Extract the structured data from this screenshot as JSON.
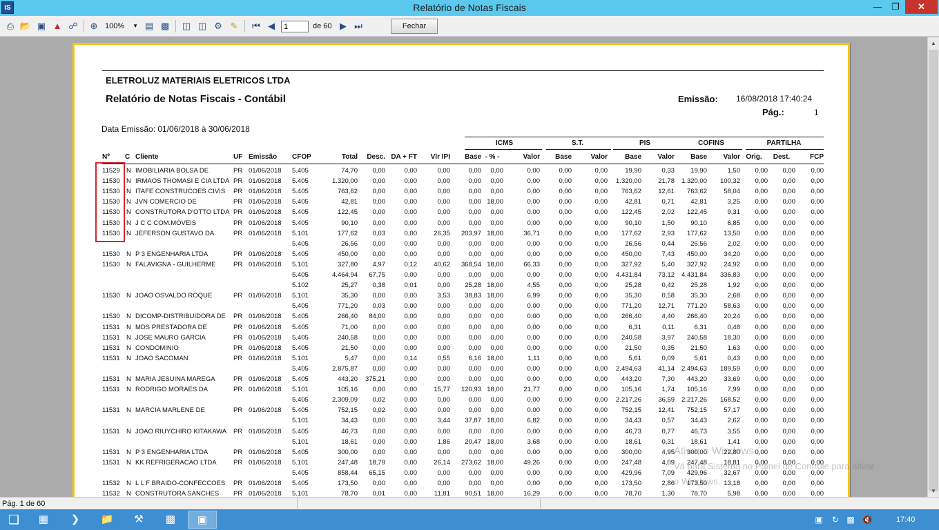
{
  "window": {
    "title": "Relatório de Notas Fiscais",
    "app_icon": "IS"
  },
  "toolbar": {
    "zoom": "100%",
    "page_current": "1",
    "page_of": "de 60",
    "close_label": "Fechar",
    "icons": [
      "print-icon",
      "open-icon",
      "save-icon",
      "pdf-icon",
      "find-icon",
      "zoom-in-icon",
      "page-setup-icon",
      "full-screen-icon",
      "single-page-icon",
      "two-pages-icon",
      "properties-icon",
      "edit-icon",
      "first-page-icon",
      "prev-page-icon",
      "next-page-icon",
      "last-page-icon"
    ]
  },
  "report": {
    "company": "ELETROLUZ MATERIAIS ELETRICOS LTDA",
    "title": "Relatório de Notas Fiscais - Contábil",
    "emissao_label": "Emissão:",
    "emissao_value": "16/08/2018  17:40:24",
    "pag_label": "Pág.:",
    "pag_value": "1",
    "range": "Data Emissão: 01/06/2018 à 30/06/2018",
    "groups": [
      "ICMS",
      "S.T.",
      "PIS",
      "COFINS",
      "PARTILHA"
    ],
    "columns": [
      "Nº",
      "C",
      "Cliente",
      "UF",
      "Emissão",
      "CFOP",
      "Total",
      "Desc.",
      "DA + FT",
      "Vlr IPI",
      "Base",
      "- % -",
      "Valor",
      "Base",
      "Valor",
      "Base",
      "Valor",
      "Base",
      "Valor",
      "Orig.",
      "Dest.",
      "FCP"
    ],
    "rows": [
      [
        "11529",
        "N",
        "IMOBILIARIA BOLSA DE",
        "PR",
        "01/06/2018",
        "5.405",
        "74,70",
        "0,00",
        "0,00",
        "0,00",
        "0,00",
        "0,00",
        "0,00",
        "0,00",
        "0,00",
        "19,90",
        "0,33",
        "19,90",
        "1,50",
        "0,00",
        "0,00",
        "0,00"
      ],
      [
        "11530",
        "N",
        "IRMAOS THOMASI E CIA LTDA",
        "PR",
        "01/06/2018",
        "5.405",
        "1.320,00",
        "0,00",
        "0,00",
        "0,00",
        "0,00",
        "0,00",
        "0,00",
        "0,00",
        "0,00",
        "1.320,00",
        "21,78",
        "1.320,00",
        "100,32",
        "0,00",
        "0,00",
        "0,00"
      ],
      [
        "11530",
        "N",
        "ITAFE CONSTRUCOES CIVIS",
        "PR",
        "01/06/2018",
        "5.405",
        "763,62",
        "0,00",
        "0,00",
        "0,00",
        "0,00",
        "0,00",
        "0,00",
        "0,00",
        "0,00",
        "763,62",
        "12,61",
        "763,62",
        "58,04",
        "0,00",
        "0,00",
        "0,00"
      ],
      [
        "11530",
        "N",
        "JVN COMERCIO DE",
        "PR",
        "01/06/2018",
        "5.405",
        "42,81",
        "0,00",
        "0,00",
        "0,00",
        "0,00",
        "18,00",
        "0,00",
        "0,00",
        "0,00",
        "42,81",
        "0,71",
        "42,81",
        "3,25",
        "0,00",
        "0,00",
        "0,00"
      ],
      [
        "11530",
        "N",
        "CONSTRUTORA D'OTTO LTDA",
        "PR",
        "01/06/2018",
        "5.405",
        "122,45",
        "0,00",
        "0,00",
        "0,00",
        "0,00",
        "0,00",
        "0,00",
        "0,00",
        "0,00",
        "122,45",
        "2,02",
        "122,45",
        "9,31",
        "0,00",
        "0,00",
        "0,00"
      ],
      [
        "11530",
        "N",
        "J C C COM.MOVEIS",
        "PR",
        "01/06/2018",
        "5.405",
        "90,10",
        "0,00",
        "0,00",
        "0,00",
        "0,00",
        "0,00",
        "0,00",
        "0,00",
        "0,00",
        "90,10",
        "1,50",
        "90,10",
        "6,85",
        "0,00",
        "0,00",
        "0,00"
      ],
      [
        "11530",
        "N",
        "JEFERSON GUSTAVO DA",
        "PR",
        "01/06/2018",
        "5.101",
        "177,62",
        "0,03",
        "0,00",
        "26,35",
        "203,97",
        "18,00",
        "36,71",
        "0,00",
        "0,00",
        "177,62",
        "2,93",
        "177,62",
        "13,50",
        "0,00",
        "0,00",
        "0,00"
      ],
      [
        "",
        "",
        "",
        "",
        "",
        "5.405",
        "26,56",
        "0,00",
        "0,00",
        "0,00",
        "0,00",
        "0,00",
        "0,00",
        "0,00",
        "0,00",
        "26,56",
        "0,44",
        "26,56",
        "2,02",
        "0,00",
        "0,00",
        "0,00"
      ],
      [
        "11530",
        "N",
        "P 3 ENGENHARIA LTDA",
        "PR",
        "01/06/2018",
        "5.405",
        "450,00",
        "0,00",
        "0,00",
        "0,00",
        "0,00",
        "0,00",
        "0,00",
        "0,00",
        "0,00",
        "450,00",
        "7,43",
        "450,00",
        "34,20",
        "0,00",
        "0,00",
        "0,00"
      ],
      [
        "11530",
        "N",
        "FALAVIGNA - GUILHERME",
        "PR",
        "01/06/2018",
        "5.101",
        "327,80",
        "4,97",
        "0,12",
        "40,62",
        "368,54",
        "18,00",
        "66,33",
        "0,00",
        "0,00",
        "327,92",
        "5,40",
        "327,92",
        "24,92",
        "0,00",
        "0,00",
        "0,00"
      ],
      [
        "",
        "",
        "",
        "",
        "",
        "5.405",
        "4.464,94",
        "67,75",
        "0,00",
        "0,00",
        "0,00",
        "0,00",
        "0,00",
        "0,00",
        "0,00",
        "4.431,84",
        "73,12",
        "4.431,84",
        "336,83",
        "0,00",
        "0,00",
        "0,00"
      ],
      [
        "",
        "",
        "",
        "",
        "",
        "5.102",
        "25,27",
        "0,38",
        "0,01",
        "0,00",
        "25,28",
        "18,00",
        "4,55",
        "0,00",
        "0,00",
        "25,28",
        "0,42",
        "25,28",
        "1,92",
        "0,00",
        "0,00",
        "0,00"
      ],
      [
        "11530",
        "N",
        "JOAO OSVALDO ROQUE",
        "PR",
        "01/06/2018",
        "5.101",
        "35,30",
        "0,00",
        "0,00",
        "3,53",
        "38,83",
        "18,00",
        "6,99",
        "0,00",
        "0,00",
        "35,30",
        "0,58",
        "35,30",
        "2,68",
        "0,00",
        "0,00",
        "0,00"
      ],
      [
        "",
        "",
        "",
        "",
        "",
        "5.405",
        "771,20",
        "0,03",
        "0,00",
        "0,00",
        "0,00",
        "0,00",
        "0,00",
        "0,00",
        "0,00",
        "771,20",
        "12,71",
        "771,20",
        "58,63",
        "0,00",
        "0,00",
        "0,00"
      ],
      [
        "11530",
        "N",
        "DICOMP-DISTRIBUIDORA DE",
        "PR",
        "01/06/2018",
        "5.405",
        "266,40",
        "84,00",
        "0,00",
        "0,00",
        "0,00",
        "0,00",
        "0,00",
        "0,00",
        "0,00",
        "266,40",
        "4,40",
        "266,40",
        "20,24",
        "0,00",
        "0,00",
        "0,00"
      ],
      [
        "11531",
        "N",
        "MDS PRESTADORA DE",
        "PR",
        "01/06/2018",
        "5.405",
        "71,00",
        "0,00",
        "0,00",
        "0,00",
        "0,00",
        "0,00",
        "0,00",
        "0,00",
        "0,00",
        "6,31",
        "0,11",
        "6,31",
        "0,48",
        "0,00",
        "0,00",
        "0,00"
      ],
      [
        "11531",
        "N",
        "JOSE MAURO GARCIA",
        "PR",
        "01/06/2018",
        "5.405",
        "240,58",
        "0,00",
        "0,00",
        "0,00",
        "0,00",
        "0,00",
        "0,00",
        "0,00",
        "0,00",
        "240,58",
        "3,97",
        "240,58",
        "18,30",
        "0,00",
        "0,00",
        "0,00"
      ],
      [
        "11531",
        "N",
        "CONDOMINIO",
        "PR",
        "01/06/2018",
        "5.405",
        "21,50",
        "0,00",
        "0,00",
        "0,00",
        "0,00",
        "0,00",
        "0,00",
        "0,00",
        "0,00",
        "21,50",
        "0,35",
        "21,50",
        "1,63",
        "0,00",
        "0,00",
        "0,00"
      ],
      [
        "11531",
        "N",
        "JOAO SACOMAN",
        "PR",
        "01/06/2018",
        "5.101",
        "5,47",
        "0,00",
        "0,14",
        "0,55",
        "6,16",
        "18,00",
        "1,11",
        "0,00",
        "0,00",
        "5,61",
        "0,09",
        "5,61",
        "0,43",
        "0,00",
        "0,00",
        "0,00"
      ],
      [
        "",
        "",
        "",
        "",
        "",
        "5.405",
        "2.875,87",
        "0,00",
        "0,00",
        "0,00",
        "0,00",
        "0,00",
        "0,00",
        "0,00",
        "0,00",
        "2.494,63",
        "41,14",
        "2.494,63",
        "189,59",
        "0,00",
        "0,00",
        "0,00"
      ],
      [
        "11531",
        "N",
        "MARIA JESUINA MAREGA",
        "PR",
        "01/06/2018",
        "5.405",
        "443,20",
        "375,21",
        "0,00",
        "0,00",
        "0,00",
        "0,00",
        "0,00",
        "0,00",
        "0,00",
        "443,20",
        "7,30",
        "443,20",
        "33,69",
        "0,00",
        "0,00",
        "0,00"
      ],
      [
        "11531",
        "N",
        "RODRIGO MORAES DA",
        "PR",
        "01/06/2018",
        "5.101",
        "105,16",
        "0,00",
        "0,00",
        "15,77",
        "120,93",
        "18,00",
        "21,77",
        "0,00",
        "0,00",
        "105,16",
        "1,74",
        "105,16",
        "7,99",
        "0,00",
        "0,00",
        "0,00"
      ],
      [
        "",
        "",
        "",
        "",
        "",
        "5.405",
        "2.309,09",
        "0,02",
        "0,00",
        "0,00",
        "0,00",
        "0,00",
        "0,00",
        "0,00",
        "0,00",
        "2.217,26",
        "36,59",
        "2.217,26",
        "168,52",
        "0,00",
        "0,00",
        "0,00"
      ],
      [
        "11531",
        "N",
        "MARCIA MARLENE DE",
        "PR",
        "01/06/2018",
        "5.405",
        "752,15",
        "0,02",
        "0,00",
        "0,00",
        "0,00",
        "0,00",
        "0,00",
        "0,00",
        "0,00",
        "752,15",
        "12,41",
        "752,15",
        "57,17",
        "0,00",
        "0,00",
        "0,00"
      ],
      [
        "",
        "",
        "",
        "",
        "",
        "5.101",
        "34,43",
        "0,00",
        "0,00",
        "3,44",
        "37,87",
        "18,00",
        "6,82",
        "0,00",
        "0,00",
        "34,43",
        "0,57",
        "34,43",
        "2,62",
        "0,00",
        "0,00",
        "0,00"
      ],
      [
        "11531",
        "N",
        "JOAO RIUYCHIRO KITAKAWA",
        "PR",
        "01/06/2018",
        "5.405",
        "46,73",
        "0,00",
        "0,00",
        "0,00",
        "0,00",
        "0,00",
        "0,00",
        "0,00",
        "0,00",
        "46,73",
        "0,77",
        "46,73",
        "3,55",
        "0,00",
        "0,00",
        "0,00"
      ],
      [
        "",
        "",
        "",
        "",
        "",
        "5.101",
        "18,61",
        "0,00",
        "0,00",
        "1,86",
        "20,47",
        "18,00",
        "3,68",
        "0,00",
        "0,00",
        "18,61",
        "0,31",
        "18,61",
        "1,41",
        "0,00",
        "0,00",
        "0,00"
      ],
      [
        "11531",
        "N",
        "P 3 ENGENHARIA LTDA",
        "PR",
        "01/06/2018",
        "5.405",
        "300,00",
        "0,00",
        "0,00",
        "0,00",
        "0,00",
        "0,00",
        "0,00",
        "0,00",
        "0,00",
        "300,00",
        "4,95",
        "300,00",
        "22,80",
        "0,00",
        "0,00",
        "0,00"
      ],
      [
        "11531",
        "N",
        "KK REFRIGERACAO LTDA",
        "PR",
        "01/06/2018",
        "5.101",
        "247,48",
        "18,79",
        "0,00",
        "26,14",
        "273,62",
        "18,00",
        "49,26",
        "0,00",
        "0,00",
        "247,48",
        "4,09",
        "247,48",
        "18,81",
        "0,00",
        "0,00",
        "0,00"
      ],
      [
        "",
        "",
        "",
        "",
        "",
        "5.405",
        "858,44",
        "65,15",
        "0,00",
        "0,00",
        "0,00",
        "0,00",
        "0,00",
        "0,00",
        "0,00",
        "429,96",
        "7,09",
        "429,96",
        "32,67",
        "0,00",
        "0,00",
        "0,00"
      ],
      [
        "11532",
        "N",
        "L L F BRAIDO-CONFECCOES",
        "PR",
        "01/06/2018",
        "5.405",
        "173,50",
        "0,00",
        "0,00",
        "0,00",
        "0,00",
        "0,00",
        "0,00",
        "0,00",
        "0,00",
        "173,50",
        "2,86",
        "173,50",
        "13,18",
        "0,00",
        "0,00",
        "0,00"
      ],
      [
        "11532",
        "N",
        "CONSTRUTORA SANCHES",
        "PR",
        "01/06/2018",
        "5.101",
        "78,70",
        "0,01",
        "0,00",
        "11,81",
        "90,51",
        "18,00",
        "16,29",
        "0,00",
        "0,00",
        "78,70",
        "1,30",
        "78,70",
        "5,98",
        "0,00",
        "0,00",
        "0,00"
      ]
    ]
  },
  "watermark": {
    "line1": "Ativar o Windows",
    "line2": "Vá para Sistema no Painel de Controle para ativar",
    "line3": "o Windows."
  },
  "status": {
    "page_text": "Pág. 1 de 60"
  },
  "taskbar": {
    "clock": "17:40"
  }
}
